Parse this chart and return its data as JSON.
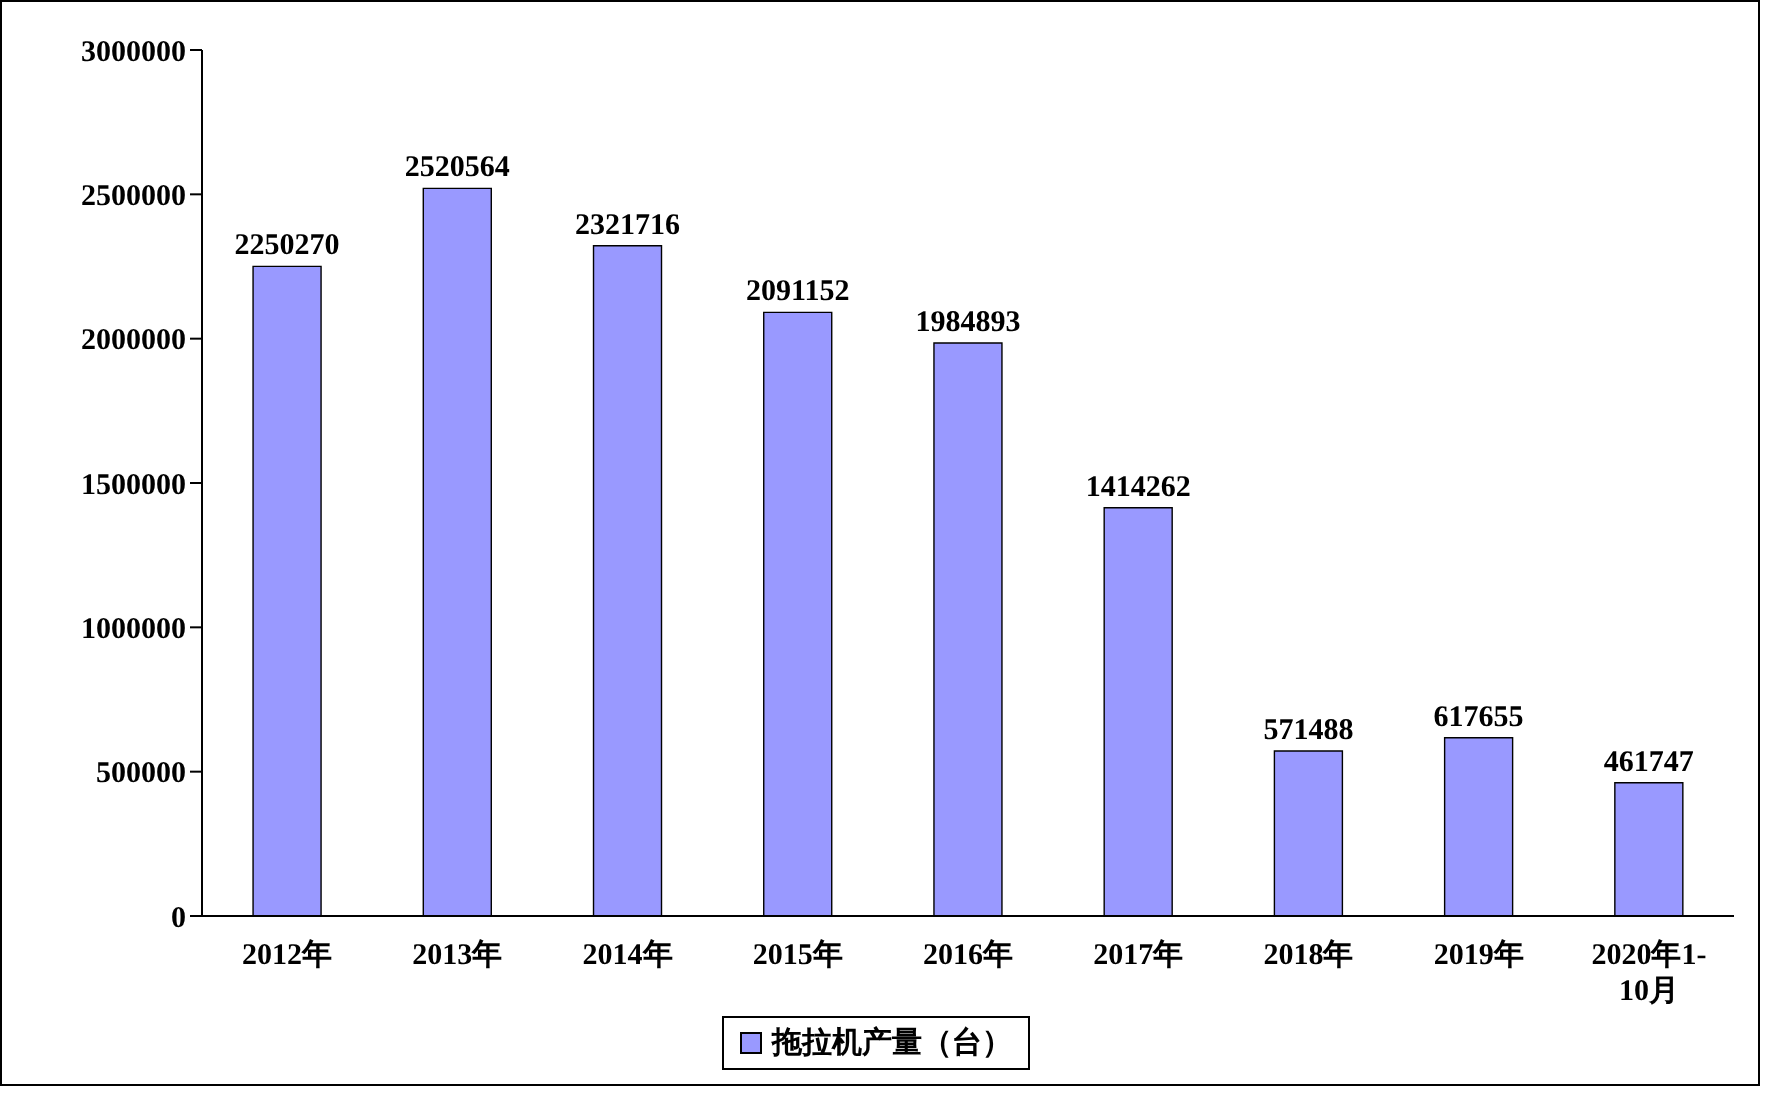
{
  "chart_data": {
    "type": "bar",
    "categories": [
      "2012年",
      "2013年",
      "2014年",
      "2015年",
      "2016年",
      "2017年",
      "2018年",
      "2019年",
      "2020年1-10月"
    ],
    "series": [
      {
        "name": "拖拉机产量（台）",
        "color": "#9999ff",
        "values": [
          2250270,
          2520564,
          2321716,
          2091152,
          1984893,
          1414262,
          571488,
          617655,
          461747
        ]
      }
    ],
    "ylim": [
      0,
      3000000
    ],
    "yticks": [
      0,
      500000,
      1000000,
      1500000,
      2000000,
      2500000,
      3000000
    ],
    "data_labels": true,
    "grid": false,
    "legend": "bottom"
  }
}
